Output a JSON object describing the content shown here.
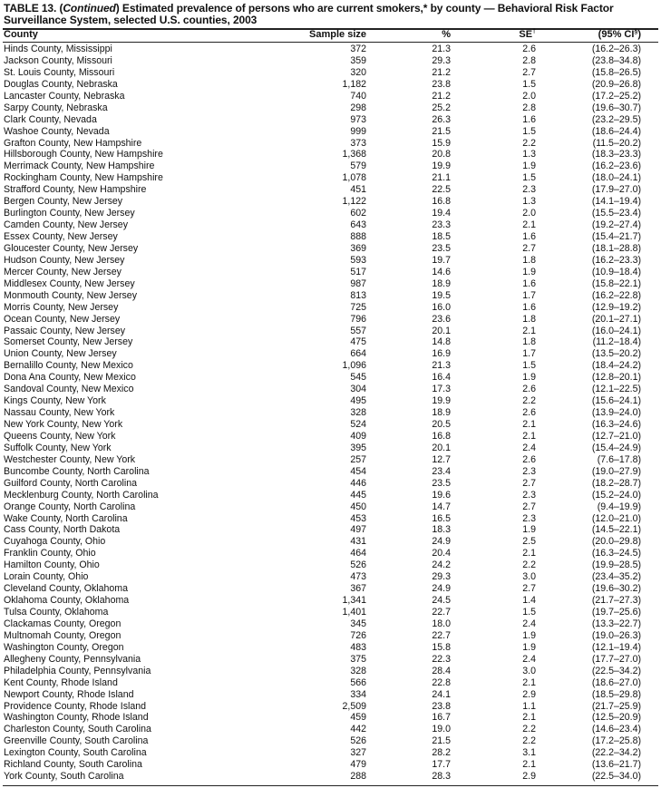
{
  "title": {
    "prefix": "TABLE 13. (",
    "continued": "Continued",
    "text": ") Estimated prevalence of persons who are current smokers,* by county — Behavioral Risk Factor Surveillance System, selected U.S. counties, 2003"
  },
  "columns": {
    "county": "County",
    "sample_size": "Sample size",
    "percent": "%",
    "se": "SE",
    "se_mark": "†",
    "ci": "(95% CI",
    "ci_mark": "§",
    "ci_close": ")"
  },
  "rows": [
    [
      "Hinds County, Mississippi",
      "372",
      "21.3",
      "2.6",
      "(16.2–26.3)"
    ],
    [
      "Jackson County, Missouri",
      "359",
      "29.3",
      "2.8",
      "(23.8–34.8)"
    ],
    [
      "St. Louis County, Missouri",
      "320",
      "21.2",
      "2.7",
      "(15.8–26.5)"
    ],
    [
      "Douglas County, Nebraska",
      "1,182",
      "23.8",
      "1.5",
      "(20.9–26.8)"
    ],
    [
      "Lancaster County, Nebraska",
      "740",
      "21.2",
      "2.0",
      "(17.2–25.2)"
    ],
    [
      "Sarpy County, Nebraska",
      "298",
      "25.2",
      "2.8",
      "(19.6–30.7)"
    ],
    [
      "Clark County, Nevada",
      "973",
      "26.3",
      "1.6",
      "(23.2–29.5)"
    ],
    [
      "Washoe County, Nevada",
      "999",
      "21.5",
      "1.5",
      "(18.6–24.4)"
    ],
    [
      "Grafton County, New Hampshire",
      "373",
      "15.9",
      "2.2",
      "(11.5–20.2)"
    ],
    [
      "Hillsborough County, New Hampshire",
      "1,368",
      "20.8",
      "1.3",
      "(18.3–23.3)"
    ],
    [
      "Merrimack County, New Hampshire",
      "579",
      "19.9",
      "1.9",
      "(16.2–23.6)"
    ],
    [
      "Rockingham County, New Hampshire",
      "1,078",
      "21.1",
      "1.5",
      "(18.0–24.1)"
    ],
    [
      "Strafford County, New Hampshire",
      "451",
      "22.5",
      "2.3",
      "(17.9–27.0)"
    ],
    [
      "Bergen County, New Jersey",
      "1,122",
      "16.8",
      "1.3",
      "(14.1–19.4)"
    ],
    [
      "Burlington County, New Jersey",
      "602",
      "19.4",
      "2.0",
      "(15.5–23.4)"
    ],
    [
      "Camden County, New Jersey",
      "643",
      "23.3",
      "2.1",
      "(19.2–27.4)"
    ],
    [
      "Essex County, New Jersey",
      "888",
      "18.5",
      "1.6",
      "(15.4–21.7)"
    ],
    [
      "Gloucester County, New Jersey",
      "369",
      "23.5",
      "2.7",
      "(18.1–28.8)"
    ],
    [
      "Hudson County, New Jersey",
      "593",
      "19.7",
      "1.8",
      "(16.2–23.3)"
    ],
    [
      "Mercer County, New Jersey",
      "517",
      "14.6",
      "1.9",
      "(10.9–18.4)"
    ],
    [
      "Middlesex County, New Jersey",
      "987",
      "18.9",
      "1.6",
      "(15.8–22.1)"
    ],
    [
      "Monmouth County, New Jersey",
      "813",
      "19.5",
      "1.7",
      "(16.2–22.8)"
    ],
    [
      "Morris County, New Jersey",
      "725",
      "16.0",
      "1.6",
      "(12.9–19.2)"
    ],
    [
      "Ocean County, New Jersey",
      "796",
      "23.6",
      "1.8",
      "(20.1–27.1)"
    ],
    [
      "Passaic County, New Jersey",
      "557",
      "20.1",
      "2.1",
      "(16.0–24.1)"
    ],
    [
      "Somerset County, New Jersey",
      "475",
      "14.8",
      "1.8",
      "(11.2–18.4)"
    ],
    [
      "Union County, New Jersey",
      "664",
      "16.9",
      "1.7",
      "(13.5–20.2)"
    ],
    [
      "Bernalillo County, New Mexico",
      "1,096",
      "21.3",
      "1.5",
      "(18.4–24.2)"
    ],
    [
      "Dona Ana County, New Mexico",
      "545",
      "16.4",
      "1.9",
      "(12.8–20.1)"
    ],
    [
      "Sandoval County, New Mexico",
      "304",
      "17.3",
      "2.6",
      "(12.1–22.5)"
    ],
    [
      "Kings County, New York",
      "495",
      "19.9",
      "2.2",
      "(15.6–24.1)"
    ],
    [
      "Nassau County, New York",
      "328",
      "18.9",
      "2.6",
      "(13.9–24.0)"
    ],
    [
      "New York County, New York",
      "524",
      "20.5",
      "2.1",
      "(16.3–24.6)"
    ],
    [
      "Queens County, New York",
      "409",
      "16.8",
      "2.1",
      "(12.7–21.0)"
    ],
    [
      "Suffolk County, New York",
      "395",
      "20.1",
      "2.4",
      "(15.4–24.9)"
    ],
    [
      "Westchester County, New York",
      "257",
      "12.7",
      "2.6",
      "(7.6–17.8)"
    ],
    [
      "Buncombe County, North Carolina",
      "454",
      "23.4",
      "2.3",
      "(19.0–27.9)"
    ],
    [
      "Guilford County, North Carolina",
      "446",
      "23.5",
      "2.7",
      "(18.2–28.7)"
    ],
    [
      "Mecklenburg County, North Carolina",
      "445",
      "19.6",
      "2.3",
      "(15.2–24.0)"
    ],
    [
      "Orange County, North Carolina",
      "450",
      "14.7",
      "2.7",
      "(9.4–19.9)"
    ],
    [
      "Wake County, North Carolina",
      "453",
      "16.5",
      "2.3",
      "(12.0–21.0)"
    ],
    [
      "Cass County, North Dakota",
      "497",
      "18.3",
      "1.9",
      "(14.5–22.1)"
    ],
    [
      "Cuyahoga County, Ohio",
      "431",
      "24.9",
      "2.5",
      "(20.0–29.8)"
    ],
    [
      "Franklin County, Ohio",
      "464",
      "20.4",
      "2.1",
      "(16.3–24.5)"
    ],
    [
      "Hamilton County, Ohio",
      "526",
      "24.2",
      "2.2",
      "(19.9–28.5)"
    ],
    [
      "Lorain County, Ohio",
      "473",
      "29.3",
      "3.0",
      "(23.4–35.2)"
    ],
    [
      "Cleveland County, Oklahoma",
      "367",
      "24.9",
      "2.7",
      "(19.6–30.2)"
    ],
    [
      "Oklahoma County, Oklahoma",
      "1,341",
      "24.5",
      "1.4",
      "(21.7–27.3)"
    ],
    [
      "Tulsa County, Oklahoma",
      "1,401",
      "22.7",
      "1.5",
      "(19.7–25.6)"
    ],
    [
      "Clackamas County, Oregon",
      "345",
      "18.0",
      "2.4",
      "(13.3–22.7)"
    ],
    [
      "Multnomah County, Oregon",
      "726",
      "22.7",
      "1.9",
      "(19.0–26.3)"
    ],
    [
      "Washington County, Oregon",
      "483",
      "15.8",
      "1.9",
      "(12.1–19.4)"
    ],
    [
      "Allegheny County, Pennsylvania",
      "375",
      "22.3",
      "2.4",
      "(17.7–27.0)"
    ],
    [
      "Philadelphia County, Pennsylvania",
      "328",
      "28.4",
      "3.0",
      "(22.5–34.2)"
    ],
    [
      "Kent County, Rhode Island",
      "566",
      "22.8",
      "2.1",
      "(18.6–27.0)"
    ],
    [
      "Newport County, Rhode Island",
      "334",
      "24.1",
      "2.9",
      "(18.5–29.8)"
    ],
    [
      "Providence County, Rhode Island",
      "2,509",
      "23.8",
      "1.1",
      "(21.7–25.9)"
    ],
    [
      "Washington County, Rhode Island",
      "459",
      "16.7",
      "2.1",
      "(12.5–20.9)"
    ],
    [
      "Charleston County, South Carolina",
      "442",
      "19.0",
      "2.2",
      "(14.6–23.4)"
    ],
    [
      "Greenville County, South Carolina",
      "526",
      "21.5",
      "2.2",
      "(17.2–25.8)"
    ],
    [
      "Lexington County, South Carolina",
      "327",
      "28.2",
      "3.1",
      "(22.2–34.2)"
    ],
    [
      "Richland County, South Carolina",
      "479",
      "17.7",
      "2.1",
      "(13.6–21.7)"
    ],
    [
      "York County, South Carolina",
      "288",
      "28.3",
      "2.9",
      "(22.5–34.0)"
    ]
  ]
}
